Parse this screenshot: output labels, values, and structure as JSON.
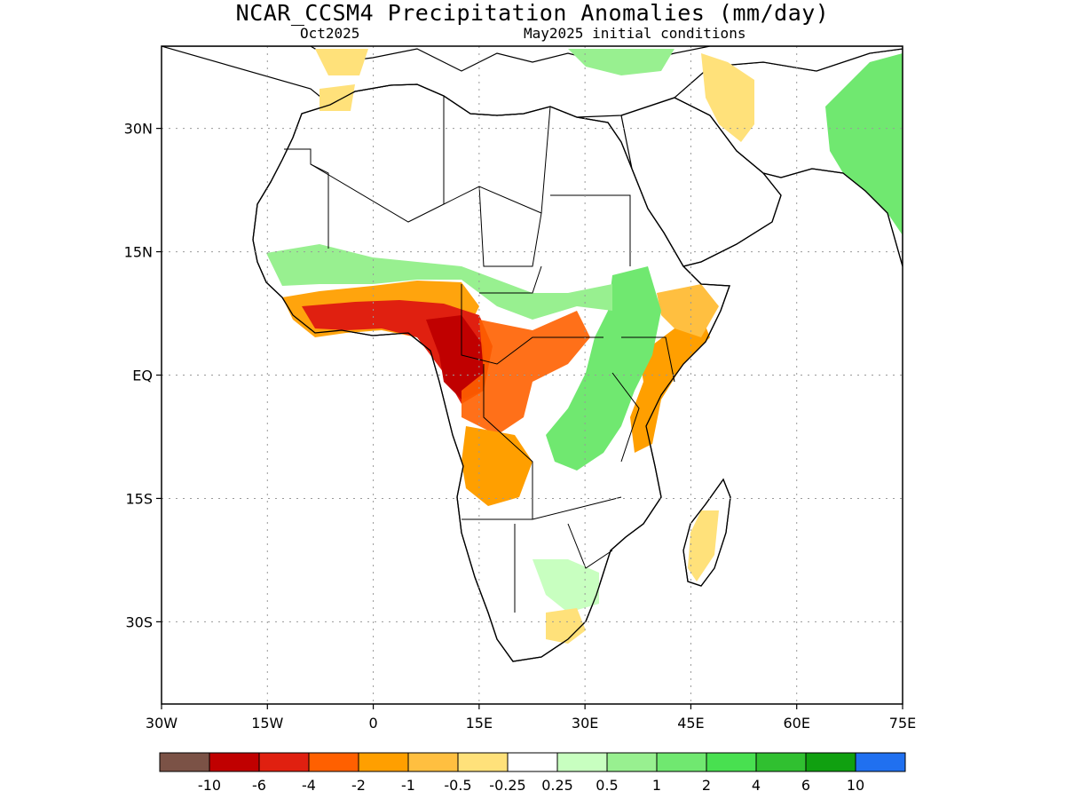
{
  "header": {
    "title": "NCAR_CCSM4 Precipitation Anomalies (mm/day)",
    "subtitle_left": "Oct2025",
    "subtitle_right": "May2025 initial conditions"
  },
  "map": {
    "region": "Africa",
    "lat_labels": [
      "30N",
      "15N",
      "EQ",
      "15S",
      "30S"
    ],
    "lat_values": [
      30,
      15,
      0,
      -15,
      -30
    ],
    "lon_labels": [
      "30W",
      "15W",
      "0",
      "15E",
      "30E",
      "45E",
      "60E",
      "75E"
    ],
    "lon_values": [
      -30,
      -15,
      0,
      15,
      30,
      45,
      60,
      75
    ],
    "lat_range": [
      -40,
      40
    ],
    "lon_range": [
      -30,
      75
    ],
    "grid": "dotted"
  },
  "colorbar": {
    "labels": [
      "-10",
      "-6",
      "-4",
      "-2",
      "-1",
      "-0.5",
      "-0.25",
      "0.25",
      "0.5",
      "1",
      "2",
      "4",
      "6",
      "10"
    ],
    "colors": [
      "#7b5246",
      "#c00000",
      "#e02010",
      "#ff6000",
      "#ff9f00",
      "#ffbf40",
      "#ffe17a",
      "#ffffff",
      "#c8ffc0",
      "#98f090",
      "#70e870",
      "#48e050",
      "#30c030",
      "#10a010",
      "#2070f0"
    ]
  },
  "anomalies": [
    {
      "name": "west-africa-coast-dry",
      "level": "-1"
    },
    {
      "name": "gulf-of-guinea-dry",
      "level": "-4"
    },
    {
      "name": "congo-core-dry",
      "level": "-6"
    },
    {
      "name": "angola-dry",
      "level": "-1"
    },
    {
      "name": "kenya-coast-dry",
      "level": "-1"
    },
    {
      "name": "east-africa-highlands-wet",
      "level": "1"
    },
    {
      "name": "sahel-wet",
      "level": "0.5"
    },
    {
      "name": "india-wet",
      "level": "1"
    },
    {
      "name": "madagascar-dry",
      "level": "-0.5"
    },
    {
      "name": "arabia-dry",
      "level": "-0.5"
    }
  ]
}
